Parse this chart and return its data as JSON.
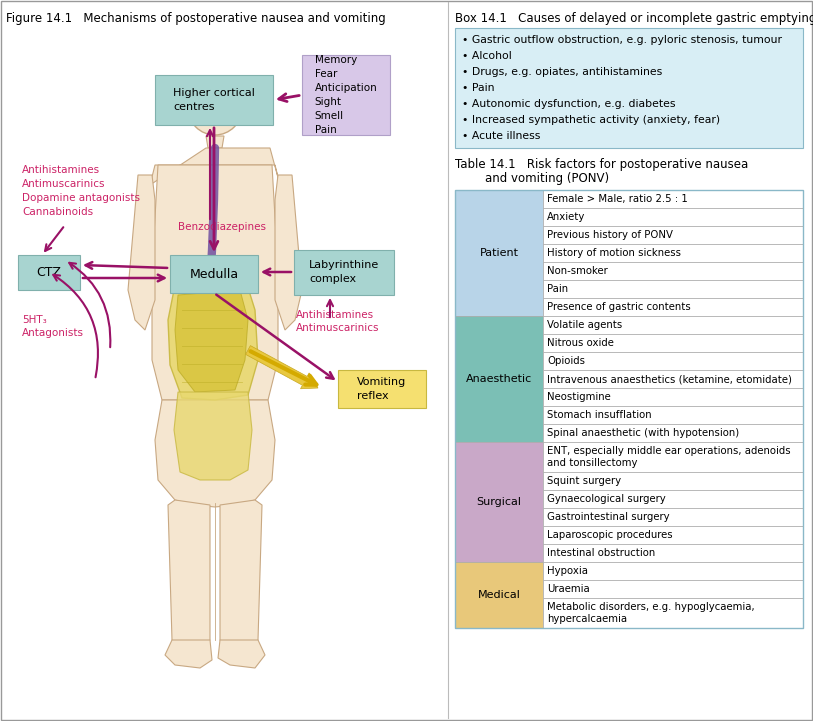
{
  "fig_title": "Figure 14.1   Mechanisms of postoperative nausea and vomiting",
  "box_title": "Box 14.1   Causes of delayed or incomplete gastric emptying",
  "table_title_line1": "Table 14.1   Risk factors for postoperative nausea",
  "table_title_line2": "        and vomiting (PONV)",
  "box_items": [
    "Gastric outflow obstruction, e.g. pyloric stenosis, tumour",
    "Alcohol",
    "Drugs, e.g. opiates, antihistamines",
    "Pain",
    "Autonomic dysfunction, e.g. diabetes",
    "Increased sympathetic activity (anxiety, fear)",
    "Acute illness"
  ],
  "table_data": {
    "Patient": {
      "color": "#b8d4e8",
      "items": [
        "Female > Male, ratio 2.5 : 1",
        "Anxiety",
        "Previous history of PONV",
        "History of motion sickness",
        "Non-smoker",
        "Pain",
        "Presence of gastric contents"
      ]
    },
    "Anaesthetic": {
      "color": "#7bbfb5",
      "items": [
        "Volatile agents",
        "Nitrous oxide",
        "Opioids",
        "Intravenous anaesthetics (ketamine, etomidate)",
        "Neostigmine",
        "Stomach insufflation",
        "Spinal anaesthetic (with hypotension)"
      ]
    },
    "Surgical": {
      "color": "#c9a8c8",
      "items": [
        "ENT, especially middle ear operations, adenoids\nand tonsillectomy",
        "Squint surgery",
        "Gynaecological surgery",
        "Gastrointestinal surgery",
        "Laparoscopic procedures",
        "Intestinal obstruction"
      ]
    },
    "Medical": {
      "color": "#e8c87a",
      "items": [
        "Hypoxia",
        "Uraemia",
        "Metabolic disorders, e.g. hypoglycaemia,\nhypercalcaemia"
      ]
    }
  },
  "body_color": "#f5e6d0",
  "body_outline": "#c8a882",
  "esophagus_color": "#7050a0",
  "stomach_color": "#e8d870",
  "stomach_outline": "#c8b840",
  "box_teal": "#a8d4d0",
  "box_teal_ec": "#80b0ac",
  "box_purple": "#d8c8e8",
  "box_purple_ec": "#b0a0c8",
  "box_yellow": "#f5e070",
  "box_yellow_ec": "#c8b840",
  "arrow_color": "#991166",
  "drug_text_color": "#cc2266",
  "box_bg_color": "#d8eef5",
  "box_border_color": "#8ab8c8",
  "table_border_color": "#8ab8c8"
}
